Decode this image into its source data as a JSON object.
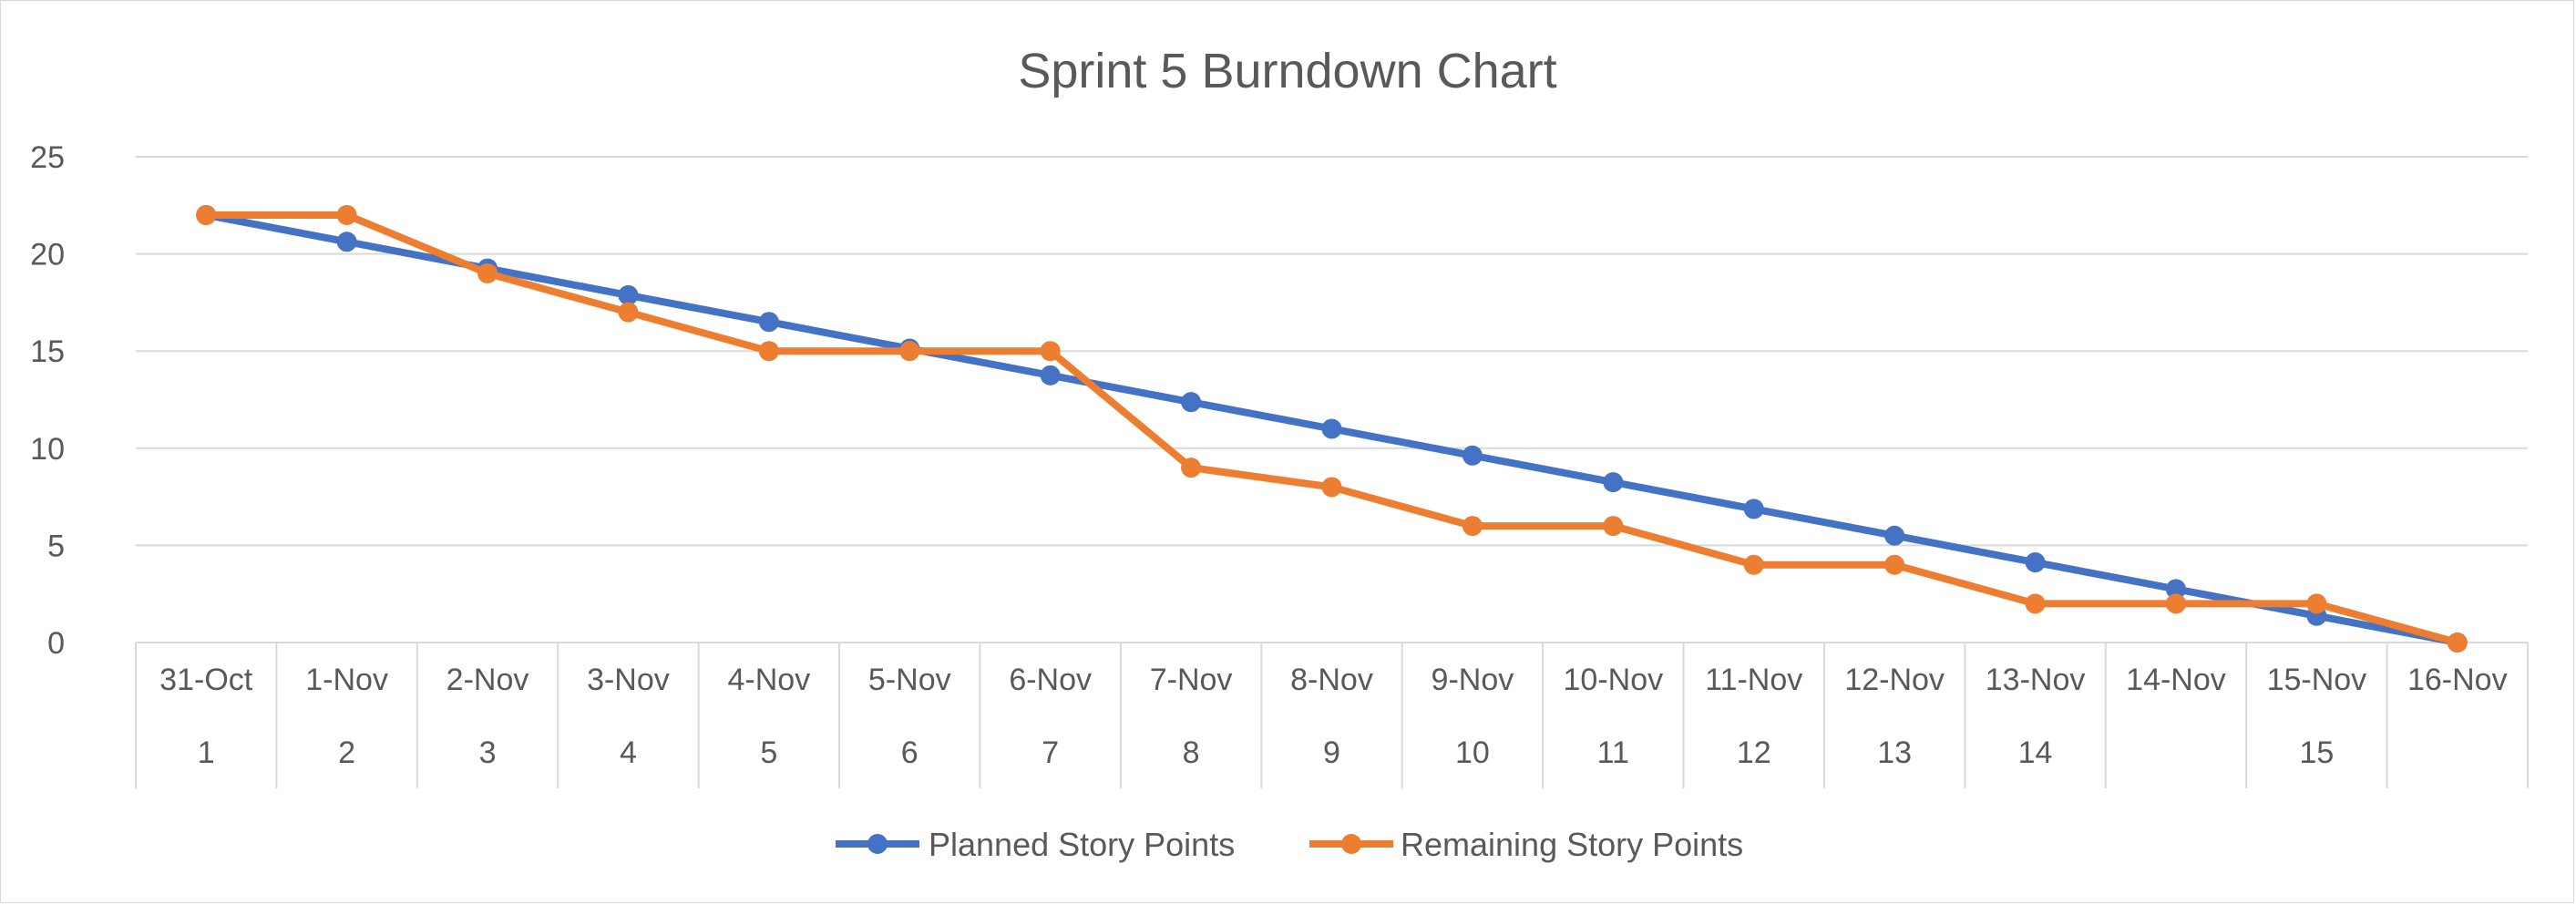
{
  "chart_data": {
    "type": "line",
    "title": "Sprint 5 Burndown Chart",
    "xlabel": "",
    "ylabel": "",
    "categories": [
      "31-Oct",
      "1-Nov",
      "2-Nov",
      "3-Nov",
      "4-Nov",
      "5-Nov",
      "6-Nov",
      "7-Nov",
      "8-Nov",
      "9-Nov",
      "10-Nov",
      "11-Nov",
      "12-Nov",
      "13-Nov",
      "14-Nov",
      "15-Nov",
      "16-Nov"
    ],
    "secondary_categories": [
      {
        "label": "1",
        "span": 1
      },
      {
        "label": "2",
        "span": 1
      },
      {
        "label": "3",
        "span": 1
      },
      {
        "label": "4",
        "span": 1
      },
      {
        "label": "5",
        "span": 1
      },
      {
        "label": "6",
        "span": 1
      },
      {
        "label": "7",
        "span": 1
      },
      {
        "label": "8",
        "span": 1
      },
      {
        "label": "9",
        "span": 1
      },
      {
        "label": "10",
        "span": 1
      },
      {
        "label": "11",
        "span": 1
      },
      {
        "label": "12",
        "span": 1
      },
      {
        "label": "13",
        "span": 1
      },
      {
        "label": "14",
        "span": 1
      },
      {
        "label": "15",
        "span": 3
      }
    ],
    "ylim": [
      0,
      25
    ],
    "yticks": [
      0,
      5,
      10,
      15,
      20,
      25
    ],
    "grid": true,
    "legend_position": "bottom",
    "series": [
      {
        "name": "Planned Story Points",
        "color": "#4472C4",
        "values": [
          22,
          20.625,
          19.25,
          17.875,
          16.5,
          15.125,
          13.75,
          12.375,
          11,
          9.625,
          8.25,
          6.875,
          5.5,
          4.125,
          2.75,
          1.375,
          0
        ]
      },
      {
        "name": "Remaining Story Points",
        "color": "#ED7D31",
        "values": [
          22,
          22,
          19,
          17,
          15,
          15,
          15,
          9,
          8,
          6,
          6,
          4,
          4,
          2,
          2,
          2,
          0
        ]
      }
    ]
  }
}
